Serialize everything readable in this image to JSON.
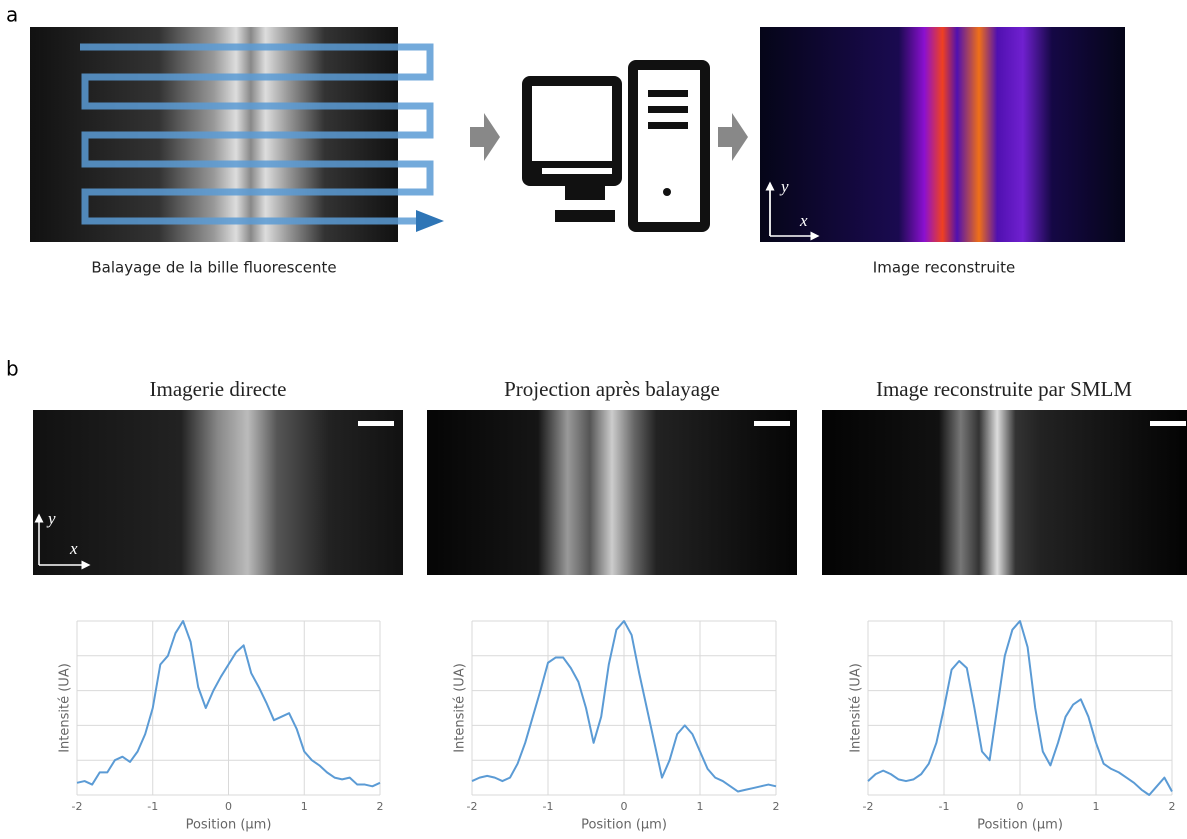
{
  "panel_a": {
    "label": "a",
    "caption_left": "Balayage de la bille fluorescente",
    "caption_right": "Image reconstruite",
    "image_axes": {
      "x": "x",
      "y": "y"
    }
  },
  "panel_b": {
    "label": "b",
    "titles": [
      "Imagerie directe",
      "Projection après balayage",
      "Image reconstruite par SMLM"
    ],
    "image_axes": {
      "x": "x",
      "y": "y"
    }
  },
  "chart_data": [
    {
      "type": "line",
      "xlabel": "Position (µm)",
      "ylabel": "Intensité (UA)",
      "color": "#5b9bd5",
      "x": [
        -2,
        -1.9,
        -1.8,
        -1.7,
        -1.6,
        -1.5,
        -1.4,
        -1.3,
        -1.2,
        -1.1,
        -1,
        -0.9,
        -0.8,
        -0.7,
        -0.6,
        -0.5,
        -0.4,
        -0.3,
        -0.2,
        -0.1,
        0,
        0.1,
        0.2,
        0.3,
        0.4,
        0.5,
        0.6,
        0.7,
        0.8,
        0.9,
        1,
        1.1,
        1.2,
        1.3,
        1.4,
        1.5,
        1.6,
        1.7,
        1.8,
        1.9,
        2
      ],
      "values": [
        0.07,
        0.08,
        0.06,
        0.13,
        0.13,
        0.2,
        0.22,
        0.19,
        0.25,
        0.35,
        0.5,
        0.75,
        0.8,
        0.93,
        1.0,
        0.88,
        0.62,
        0.5,
        0.6,
        0.68,
        0.75,
        0.82,
        0.86,
        0.7,
        0.62,
        0.53,
        0.43,
        0.45,
        0.47,
        0.38,
        0.25,
        0.2,
        0.17,
        0.13,
        0.1,
        0.09,
        0.1,
        0.06,
        0.06,
        0.05,
        0.07
      ],
      "xlim": [
        -2,
        2
      ],
      "xticks": [
        -2,
        -1,
        0,
        1,
        2
      ],
      "ylim": [
        0,
        1
      ],
      "ygrid": [
        0,
        0.2,
        0.4,
        0.6,
        0.8,
        1
      ],
      "grid": true
    },
    {
      "type": "line",
      "xlabel": "Position (µm)",
      "ylabel": "Intensité (UA)",
      "color": "#5b9bd5",
      "x": [
        -2,
        -1.9,
        -1.8,
        -1.7,
        -1.6,
        -1.5,
        -1.4,
        -1.3,
        -1.2,
        -1.1,
        -1,
        -0.9,
        -0.8,
        -0.7,
        -0.6,
        -0.5,
        -0.4,
        -0.3,
        -0.2,
        -0.1,
        0,
        0.1,
        0.2,
        0.3,
        0.4,
        0.5,
        0.6,
        0.7,
        0.8,
        0.9,
        1,
        1.1,
        1.2,
        1.3,
        1.4,
        1.5,
        1.6,
        1.7,
        1.8,
        1.9,
        2
      ],
      "values": [
        0.08,
        0.1,
        0.11,
        0.1,
        0.08,
        0.1,
        0.18,
        0.3,
        0.45,
        0.6,
        0.76,
        0.79,
        0.79,
        0.73,
        0.65,
        0.5,
        0.3,
        0.45,
        0.75,
        0.95,
        1.0,
        0.92,
        0.7,
        0.5,
        0.3,
        0.1,
        0.2,
        0.35,
        0.4,
        0.35,
        0.25,
        0.15,
        0.1,
        0.08,
        0.05,
        0.02,
        0.03,
        0.04,
        0.05,
        0.06,
        0.05
      ],
      "xlim": [
        -2,
        2
      ],
      "xticks": [
        -2,
        -1,
        0,
        1,
        2
      ],
      "ylim": [
        0,
        1
      ],
      "ygrid": [
        0,
        0.2,
        0.4,
        0.6,
        0.8,
        1
      ],
      "grid": true
    },
    {
      "type": "line",
      "xlabel": "Position (µm)",
      "ylabel": "Intensité (UA)",
      "color": "#5b9bd5",
      "x": [
        -2,
        -1.9,
        -1.8,
        -1.7,
        -1.6,
        -1.5,
        -1.4,
        -1.3,
        -1.2,
        -1.1,
        -1,
        -0.9,
        -0.8,
        -0.7,
        -0.6,
        -0.5,
        -0.4,
        -0.3,
        -0.2,
        -0.1,
        0,
        0.1,
        0.2,
        0.3,
        0.4,
        0.5,
        0.6,
        0.7,
        0.8,
        0.9,
        1,
        1.1,
        1.2,
        1.3,
        1.4,
        1.5,
        1.6,
        1.7,
        1.8,
        1.9,
        2
      ],
      "values": [
        0.08,
        0.12,
        0.14,
        0.12,
        0.09,
        0.08,
        0.09,
        0.12,
        0.18,
        0.3,
        0.5,
        0.72,
        0.77,
        0.73,
        0.5,
        0.25,
        0.2,
        0.5,
        0.8,
        0.95,
        1.0,
        0.85,
        0.5,
        0.25,
        0.17,
        0.3,
        0.45,
        0.52,
        0.55,
        0.45,
        0.3,
        0.18,
        0.15,
        0.13,
        0.1,
        0.07,
        0.03,
        0.0,
        0.05,
        0.1,
        0.02
      ],
      "xlim": [
        -2,
        2
      ],
      "xticks": [
        -2,
        -1,
        0,
        1,
        2
      ],
      "ylim": [
        0,
        1
      ],
      "ygrid": [
        0,
        0.2,
        0.4,
        0.6,
        0.8,
        1
      ],
      "grid": true
    }
  ]
}
